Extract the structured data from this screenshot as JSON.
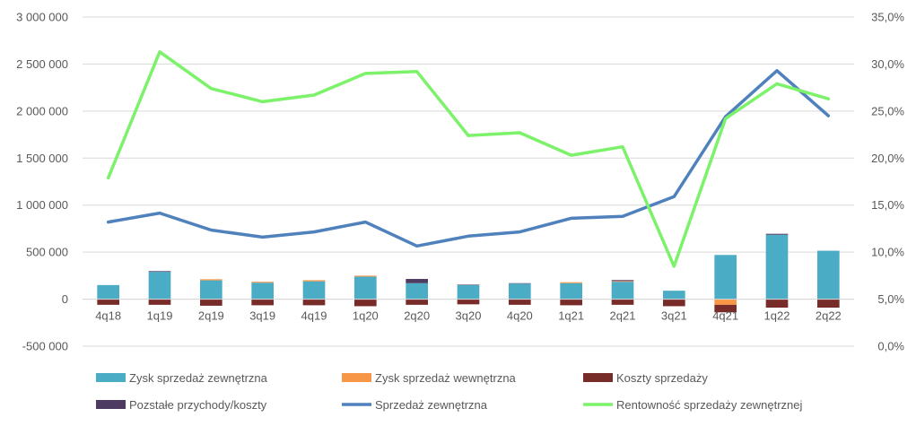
{
  "chart_data": {
    "type": "bar",
    "title": "",
    "categories": [
      "4q18",
      "1q19",
      "2q19",
      "3q19",
      "4q19",
      "1q20",
      "2q20",
      "3q20",
      "4q20",
      "1q21",
      "2q21",
      "3q21",
      "4q21",
      "1q22",
      "2q22"
    ],
    "y_left": {
      "min": -500000,
      "max": 3000000,
      "step": 500000,
      "tick_labels": [
        "-500 000",
        "0",
        "500 000",
        "1 000 000",
        "1 500 000",
        "2 000 000",
        "2 500 000",
        "3 000 000"
      ]
    },
    "y_right": {
      "min": 0,
      "max": 35,
      "step": 5,
      "tick_labels": [
        "0,0%",
        "5,0%",
        "10,0%",
        "15,0%",
        "20,0%",
        "25,0%",
        "30,0%",
        "35,0%"
      ]
    },
    "grid": true,
    "legend_position": "bottom",
    "series": [
      {
        "name": "Zysk sprzedaż zewnętrzna",
        "kind": "bar",
        "axis": "left",
        "color": "#4BACC6",
        "values": [
          150000,
          290000,
          200000,
          175000,
          190000,
          240000,
          170000,
          150000,
          165000,
          170000,
          185000,
          90000,
          470000,
          685000,
          515000
        ]
      },
      {
        "name": "Zysk sprzedaż wewnętrzna",
        "kind": "bar",
        "axis": "left",
        "color": "#F79646",
        "values": [
          0,
          0,
          12000,
          10000,
          12000,
          10000,
          0,
          0,
          0,
          10000,
          8000,
          0,
          -60000,
          0,
          0
        ]
      },
      {
        "name": "Koszty sprzedaży",
        "kind": "bar",
        "axis": "left",
        "color": "#772C2A",
        "values": [
          -60000,
          -60000,
          -70000,
          -65000,
          -65000,
          -75000,
          -60000,
          -55000,
          -60000,
          -65000,
          -60000,
          -75000,
          -80000,
          -90000,
          -90000
        ]
      },
      {
        "name": "Pozstałe przychody/koszty",
        "kind": "bar",
        "axis": "left",
        "color": "#4E3B62",
        "values": [
          0,
          8000,
          0,
          0,
          0,
          0,
          45000,
          5000,
          5000,
          0,
          10000,
          0,
          0,
          10000,
          0
        ]
      },
      {
        "name": "Sprzedaż zewnętrzna",
        "kind": "line",
        "axis": "left",
        "color": "#4F81BD",
        "values": [
          820000,
          915000,
          735000,
          660000,
          715000,
          820000,
          565000,
          670000,
          715000,
          860000,
          880000,
          1090000,
          1940000,
          2430000,
          1950000
        ]
      },
      {
        "name": "Rentowność sprzedaży zewnętrznej",
        "kind": "line",
        "axis": "right",
        "color": "#7CF26A",
        "values": [
          17.9,
          31.3,
          27.4,
          26.0,
          26.7,
          29.0,
          29.2,
          22.4,
          22.7,
          20.3,
          21.2,
          8.5,
          24.2,
          27.9,
          26.3
        ]
      }
    ]
  }
}
